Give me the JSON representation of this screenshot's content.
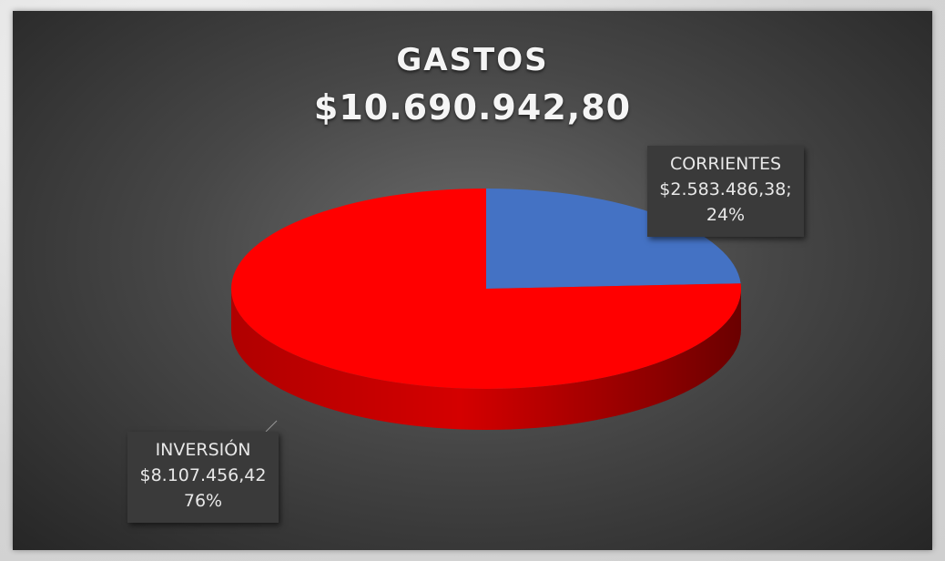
{
  "chart_data": {
    "type": "pie",
    "title": "GASTOS",
    "subtitle": "$10.690.942,80",
    "slices": [
      {
        "label": "CORRIENTES",
        "value": 2583486.38,
        "value_text": "$2.583.486,38;",
        "percent": 24,
        "percent_text": "24%",
        "color": "#4472c4"
      },
      {
        "label": "INVERSIÓN",
        "value": 8107456.42,
        "value_text": "$8.107.456,42",
        "percent": 76,
        "percent_text": "76%",
        "color": "#ff0000"
      }
    ],
    "style": "3d",
    "legend": "none"
  }
}
